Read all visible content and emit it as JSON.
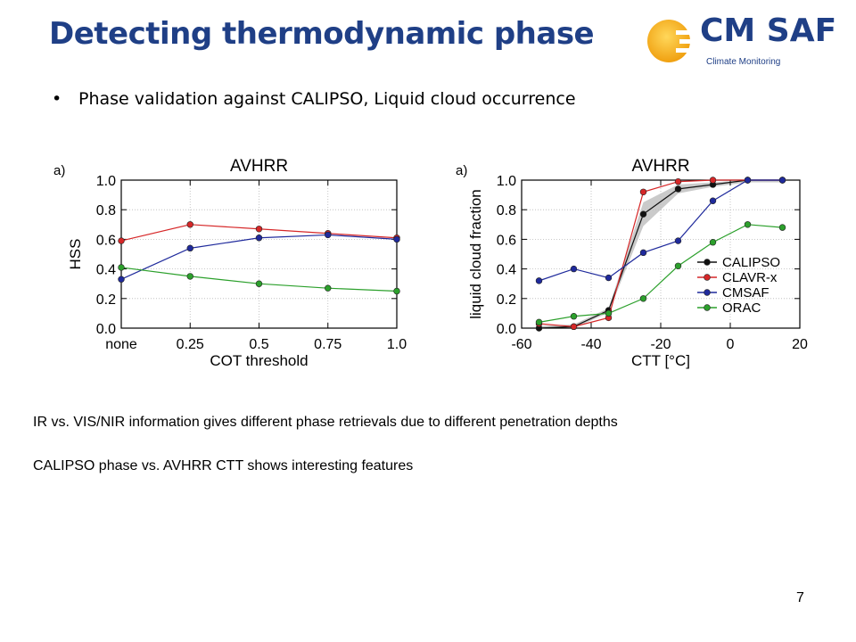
{
  "slide": {
    "title": "Detecting thermodynamic phase",
    "bullet": "Phase validation against CALIPSO, Liquid cloud occurrence",
    "notes": [
      "IR vs. VIS/NIR information gives different phase retrievals due to different penetration depths",
      "CALIPSO phase vs. AVHRR CTT shows interesting features"
    ],
    "page_number": "7"
  },
  "logo": {
    "name": "CM SAF",
    "subtitle": "Climate Monitoring",
    "colors": {
      "sun": "#f2b417",
      "text": "#1f3f86"
    }
  },
  "chart_data": [
    {
      "type": "line",
      "panel_label": "a)",
      "title": "AVHRR",
      "xlabel": "COT threshold",
      "ylabel": "HSS",
      "categories": [
        "none",
        "0.25",
        "0.5",
        "0.75",
        "1.0"
      ],
      "ylim": [
        0,
        1.0
      ],
      "yticks": [
        "0.0",
        "0.2",
        "0.4",
        "0.6",
        "0.8",
        "1.0"
      ],
      "grid": true,
      "series": [
        {
          "color": "#d62728",
          "values": [
            0.59,
            0.7,
            0.67,
            0.64,
            0.61
          ]
        },
        {
          "color": "#1f2a9c",
          "values": [
            0.33,
            0.54,
            0.61,
            0.63,
            0.6
          ]
        },
        {
          "color": "#2ca02c",
          "values": [
            0.41,
            0.35,
            0.3,
            0.27,
            0.25
          ]
        }
      ]
    },
    {
      "type": "line",
      "panel_label": "a)",
      "title": "AVHRR",
      "xlabel": "CTT [°C]",
      "ylabel": "liquid cloud fraction",
      "x": [
        -55,
        -45,
        -35,
        -25,
        -15,
        -5,
        5,
        15
      ],
      "xlim": [
        -60,
        20
      ],
      "xticks": [
        "-60",
        "-40",
        "-20",
        "0",
        "20"
      ],
      "ylim": [
        0,
        1.0
      ],
      "yticks": [
        "0.0",
        "0.2",
        "0.4",
        "0.6",
        "0.8",
        "1.0"
      ],
      "grid": true,
      "legend_position": "lower-right",
      "series": [
        {
          "name": "CALIPSO",
          "color": "#111111",
          "values": [
            0.0,
            0.01,
            0.12,
            0.77,
            0.94,
            0.97,
            1.0,
            1.0
          ]
        },
        {
          "name": "CLAVR-x",
          "color": "#d62728",
          "values": [
            0.03,
            0.01,
            0.07,
            0.92,
            0.99,
            1.0,
            1.0,
            1.0
          ]
        },
        {
          "name": "CMSAF",
          "color": "#1f2a9c",
          "values": [
            0.32,
            0.4,
            0.34,
            0.51,
            0.59,
            0.86,
            1.0,
            1.0
          ]
        },
        {
          "name": "ORAC",
          "color": "#2ca02c",
          "values": [
            0.04,
            0.08,
            0.1,
            0.2,
            0.42,
            0.58,
            0.7,
            0.68
          ]
        }
      ]
    }
  ]
}
